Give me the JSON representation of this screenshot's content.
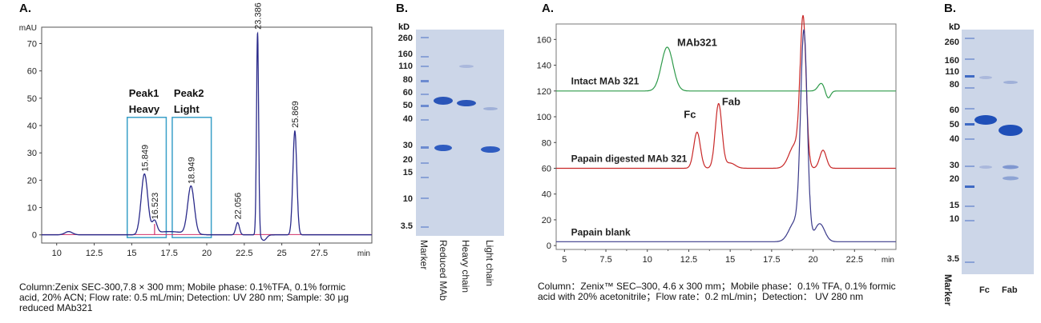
{
  "left": {
    "panel_a_label": "A.",
    "panel_b_label": "B.",
    "caption": "Column:Zenix SEC-300,7.8 × 300 mm; Mobile phase: 0.1%TFA, 0.1% formic acid, 20% ACN; Flow rate: 0.5 mL/min; Detection: UV 280 nm; Sample: 30 μg reduced MAb321",
    "gel": {
      "kd_label": "kD",
      "marker_kd": [
        "260",
        "160",
        "110",
        "80",
        "60",
        "50",
        "40",
        "30",
        "20",
        "15",
        "10",
        "3.5"
      ],
      "lanes": [
        "Marker",
        "Reduced MAb",
        "Heavy chain",
        "Light chain"
      ]
    }
  },
  "right": {
    "panel_a_label": "A.",
    "panel_b_label": "B.",
    "caption": "Column：Zenix™ SEC–300, 4.6 x 300 mm；Mobile phase：0.1% TFA, 0.1% formic acid with 20% acetonitrile；Flow rate：0.2 mL/min；Detection： UV 280 nm",
    "gel": {
      "kd_label": "kD",
      "marker_kd": [
        "260",
        "160",
        "110",
        "80",
        "60",
        "50",
        "40",
        "30",
        "20",
        "15",
        "10",
        "3.5"
      ],
      "lanes": [
        "Marker",
        "Fc",
        "Fab"
      ]
    }
  },
  "chart_data": [
    {
      "type": "line",
      "title": "",
      "ylabel": "mAU",
      "xlabel": "min",
      "xlim": [
        9,
        31
      ],
      "ylim": [
        -3,
        76
      ],
      "xticks": [
        "10",
        "12.5",
        "15",
        "17.5",
        "20",
        "22.5",
        "25",
        "27.5"
      ],
      "yticks": [
        "0",
        "10",
        "20",
        "30",
        "40",
        "50",
        "60",
        "70"
      ],
      "xtick_values": [
        10,
        12.5,
        15,
        17.5,
        20,
        22.5,
        25,
        27.5
      ],
      "ytick_values": [
        0,
        10,
        20,
        30,
        40,
        50,
        60,
        70
      ],
      "series": [
        {
          "color": "#2a2a8a",
          "peaks": [
            {
              "rt": 10.8,
              "h": 1.2,
              "w": 0.25
            },
            {
              "rt": 15.849,
              "h": 22,
              "w": 0.22
            },
            {
              "rt": 16.523,
              "h": 4.5,
              "w": 0.16
            },
            {
              "rt": 18.949,
              "h": 17.5,
              "w": 0.22
            },
            {
              "rt": 22.056,
              "h": 4.5,
              "w": 0.12
            },
            {
              "rt": 23.386,
              "h": 74,
              "w": 0.07
            },
            {
              "rt": 25.869,
              "h": 38,
              "w": 0.13
            }
          ],
          "dip": {
            "rt": 23.8,
            "h": -2,
            "w": 0.18
          }
        },
        {
          "color": "#d0306a",
          "baseline": true
        }
      ],
      "peak_labels": [
        "15.849",
        "16.523",
        "18.949",
        "22.056",
        "23.386",
        "25.869"
      ],
      "peak_label_rt": [
        15.849,
        16.523,
        18.949,
        22.056,
        23.386,
        25.869
      ],
      "annotations": [
        {
          "lines": [
            "Peak1",
            "Heavy"
          ],
          "x_range": [
            14.7,
            17.3
          ]
        },
        {
          "lines": [
            "Peak2",
            "Light"
          ],
          "x_range": [
            17.7,
            20.3
          ]
        }
      ],
      "annotation_box_ylim": [
        -1,
        43
      ]
    },
    {
      "type": "line",
      "title": "",
      "xlabel": "min",
      "ylabel": "",
      "xlim": [
        4.5,
        25
      ],
      "ylim": [
        -3,
        172
      ],
      "xticks": [
        "5",
        "7.5",
        "10",
        "12.5",
        "15",
        "17.5",
        "20",
        "22.5"
      ],
      "yticks": [
        "0",
        "20",
        "40",
        "60",
        "80",
        "100",
        "120",
        "140",
        "160"
      ],
      "xtick_values": [
        5,
        7.5,
        10,
        12.5,
        15,
        17.5,
        20,
        22.5
      ],
      "ytick_values": [
        0,
        20,
        40,
        60,
        80,
        100,
        120,
        140,
        160
      ],
      "series": [
        {
          "name": "Intact MAb 321",
          "color": "#2e9a4a",
          "baseline": 120,
          "peaks": [
            {
              "rt": 11.2,
              "h": 34,
              "w": 0.35
            },
            {
              "rt": 20.5,
              "h": 6,
              "w": 0.2
            }
          ],
          "dip": {
            "rt": 20.9,
            "h": -6,
            "w": 0.15
          }
        },
        {
          "name": "Papain digested MAb 321",
          "color": "#c82828",
          "baseline": 60,
          "peaks": [
            {
              "rt": 13.0,
              "h": 28,
              "w": 0.2
            },
            {
              "rt": 14.3,
              "h": 50,
              "w": 0.2
            },
            {
              "rt": 15.0,
              "h": 4,
              "w": 0.3
            },
            {
              "rt": 19.4,
              "h": 112,
              "w": 0.18
            },
            {
              "rt": 18.9,
              "h": 18,
              "w": 0.35
            },
            {
              "rt": 20.6,
              "h": 14,
              "w": 0.2
            }
          ]
        },
        {
          "name": "Papain blank",
          "color": "#3a3a8a",
          "baseline": 3,
          "peaks": [
            {
              "rt": 19.45,
              "h": 160,
              "w": 0.2
            },
            {
              "rt": 18.9,
              "h": 15,
              "w": 0.35
            },
            {
              "rt": 20.4,
              "h": 14,
              "w": 0.3
            }
          ]
        }
      ],
      "peak_text": [
        "MAb321",
        "Fc",
        "Fab"
      ],
      "peak_text_pos": [
        [
          11.8,
          155
        ],
        [
          12.2,
          99
        ],
        [
          14.5,
          109
        ]
      ],
      "series_label_pos": [
        [
          5.4,
          125
        ],
        [
          5.4,
          65
        ],
        [
          5.4,
          8
        ]
      ]
    }
  ]
}
